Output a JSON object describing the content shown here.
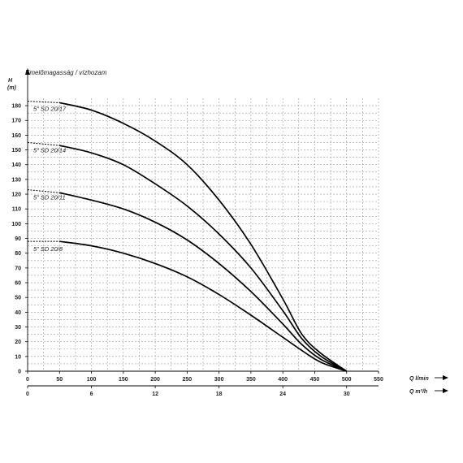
{
  "chart_data": {
    "type": "line",
    "title": "Emelőmagasság / vízhozam",
    "ylabel": "H",
    "yunit": "(m)",
    "xlabel": "Q l/min",
    "x2label": "Q m³/h",
    "xlim": [
      0,
      550
    ],
    "ylim": [
      0,
      185
    ],
    "x_ticks": [
      0,
      50,
      100,
      150,
      200,
      250,
      300,
      350,
      400,
      450,
      500,
      550
    ],
    "x2_ticks": [
      "0",
      "6",
      "12",
      "18",
      "24",
      "30"
    ],
    "x2_tick_positions_lmin": [
      0,
      100,
      200,
      300,
      400,
      500
    ],
    "y_ticks": [
      0,
      10,
      20,
      30,
      40,
      50,
      60,
      70,
      80,
      90,
      100,
      110,
      120,
      130,
      140,
      150,
      160,
      170,
      180
    ],
    "grid": true,
    "series": [
      {
        "name": "5\" SD 20/17",
        "color": "#000000",
        "dashed_until": 50,
        "points": [
          [
            0,
            183
          ],
          [
            50,
            182
          ],
          [
            100,
            177
          ],
          [
            150,
            168
          ],
          [
            200,
            156
          ],
          [
            250,
            140
          ],
          [
            300,
            116
          ],
          [
            350,
            86
          ],
          [
            400,
            49
          ],
          [
            430,
            25
          ],
          [
            460,
            12
          ],
          [
            500,
            0
          ]
        ]
      },
      {
        "name": "5\" SD 20/14",
        "color": "#000000",
        "dashed_until": 50,
        "points": [
          [
            0,
            155
          ],
          [
            50,
            153
          ],
          [
            100,
            148
          ],
          [
            150,
            140
          ],
          [
            200,
            127
          ],
          [
            250,
            112
          ],
          [
            300,
            93
          ],
          [
            350,
            70
          ],
          [
            400,
            41
          ],
          [
            430,
            22
          ],
          [
            460,
            10
          ],
          [
            500,
            0
          ]
        ]
      },
      {
        "name": "5\" SD 20/11",
        "color": "#000000",
        "dashed_until": 50,
        "points": [
          [
            0,
            123
          ],
          [
            50,
            121
          ],
          [
            100,
            116
          ],
          [
            150,
            110
          ],
          [
            200,
            101
          ],
          [
            250,
            89
          ],
          [
            300,
            73
          ],
          [
            350,
            54
          ],
          [
            400,
            32
          ],
          [
            430,
            18
          ],
          [
            460,
            8
          ],
          [
            500,
            0
          ]
        ]
      },
      {
        "name": "5\" SD 20/8",
        "color": "#000000",
        "dashed_until": 50,
        "points": [
          [
            0,
            88
          ],
          [
            50,
            88
          ],
          [
            100,
            85
          ],
          [
            150,
            80
          ],
          [
            200,
            73
          ],
          [
            250,
            64
          ],
          [
            300,
            52
          ],
          [
            350,
            38
          ],
          [
            400,
            23
          ],
          [
            430,
            14
          ],
          [
            460,
            6
          ],
          [
            500,
            0
          ]
        ]
      }
    ]
  }
}
